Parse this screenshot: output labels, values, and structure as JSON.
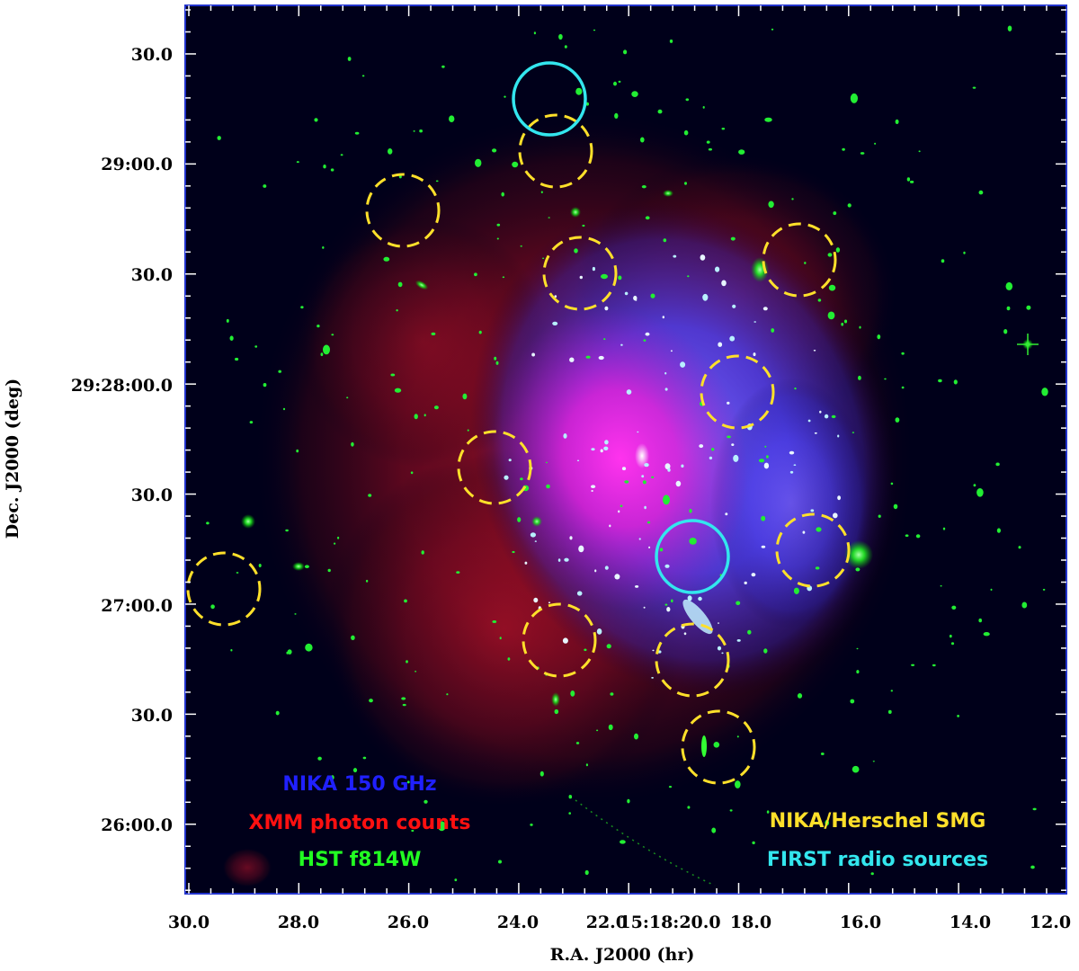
{
  "axes": {
    "x_title": "R.A. J2000 (hr)",
    "y_title": "Dec. J2000 (deg)",
    "x_ticks": [
      "30.0",
      "28.0",
      "26.0",
      "24.0",
      "22.0",
      "15:18:20.0",
      "18.0",
      "16.0",
      "14.0",
      "12.0"
    ],
    "y_ticks": [
      "30.0",
      "29:00.0",
      "30.0",
      "29:28:00.0",
      "30.0",
      "27:00.0",
      "30.0",
      "26:00.0"
    ]
  },
  "legend": {
    "nika": "NIKA 150 GHz",
    "xmm": "XMM photon counts",
    "hst": "HST f814W",
    "smg": "NIKA/Herschel SMG",
    "first": "FIRST radio sources"
  },
  "colors": {
    "nika": "#2020ff",
    "xmm": "#ff1010",
    "hst": "#22ff22",
    "smg": "#ffe02a",
    "first": "#33e6ee",
    "background": "#00001a",
    "frame": "#2233cc"
  }
}
